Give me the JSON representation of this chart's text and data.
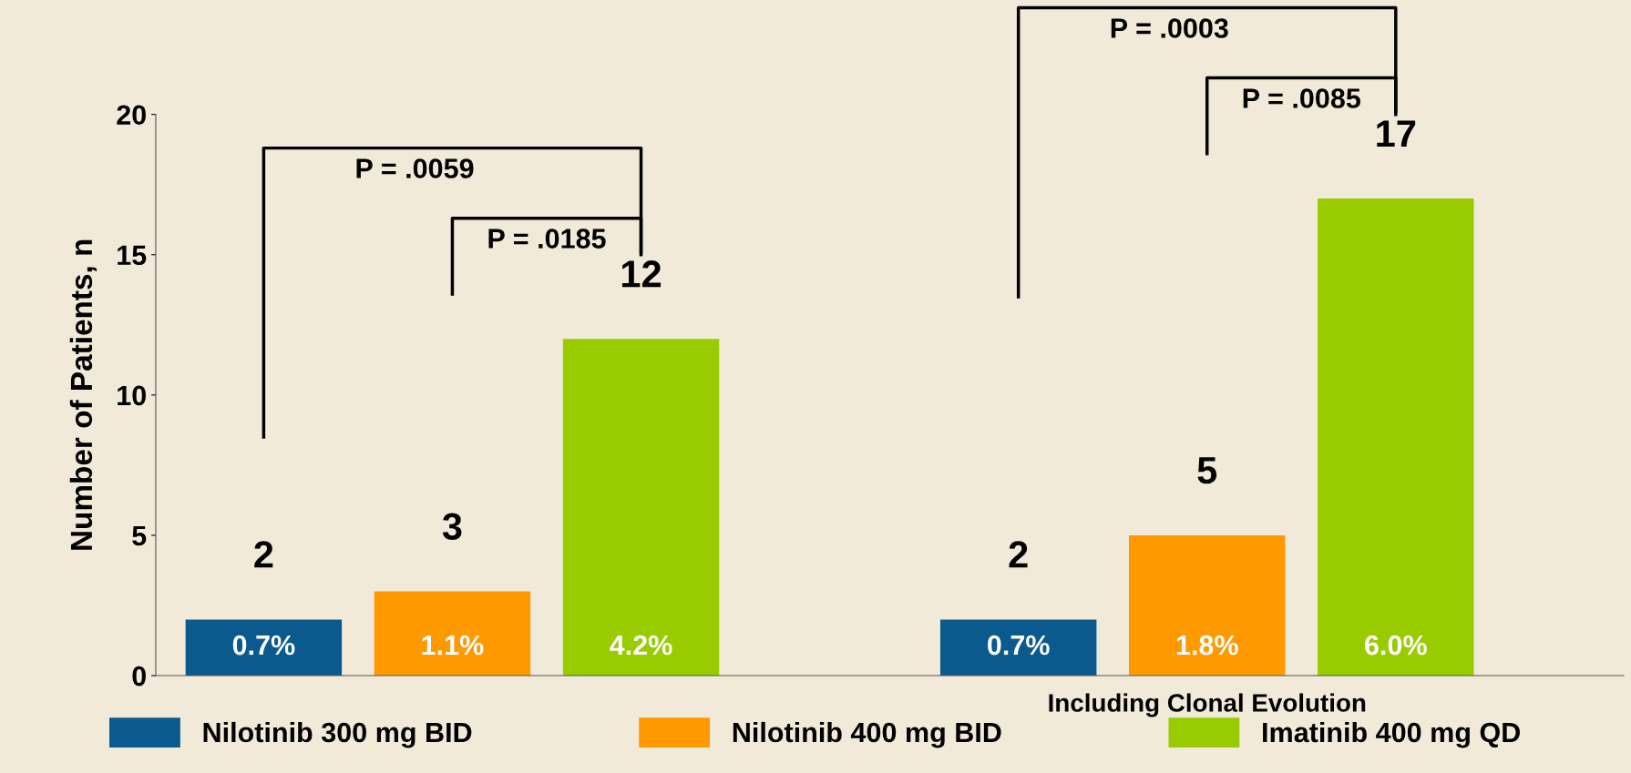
{
  "chart_data": {
    "type": "bar",
    "ylabel": "Number of Patients, n",
    "categories": [
      null,
      "Including Clonal Evolution"
    ],
    "series": [
      {
        "name": "Nilotinib 300 mg BID",
        "color": "#0b5a8e",
        "values": [
          2,
          2
        ],
        "value_labels": [
          "2",
          "2"
        ]
      },
      {
        "name": "Nilotinib 400 mg BID",
        "color": "#ff9900",
        "values": [
          3,
          5
        ],
        "value_labels": [
          "3",
          "5"
        ]
      },
      {
        "name": "Imatinib 400 mg QD",
        "color": "#99cc00",
        "values": [
          12,
          17
        ],
        "value_labels": [
          "12",
          "17"
        ]
      }
    ],
    "ylim": [
      0,
      20
    ],
    "yticks": [
      0,
      5,
      10,
      15,
      20
    ],
    "grid": false,
    "legend": "bottom",
    "annotations": [
      "0.7%",
      "1.1%",
      "4.2%",
      "0.7%",
      "1.8%",
      "6.0%",
      "P = .0059",
      "P = .0185",
      "P = .0003",
      "P = .0085"
    ]
  }
}
